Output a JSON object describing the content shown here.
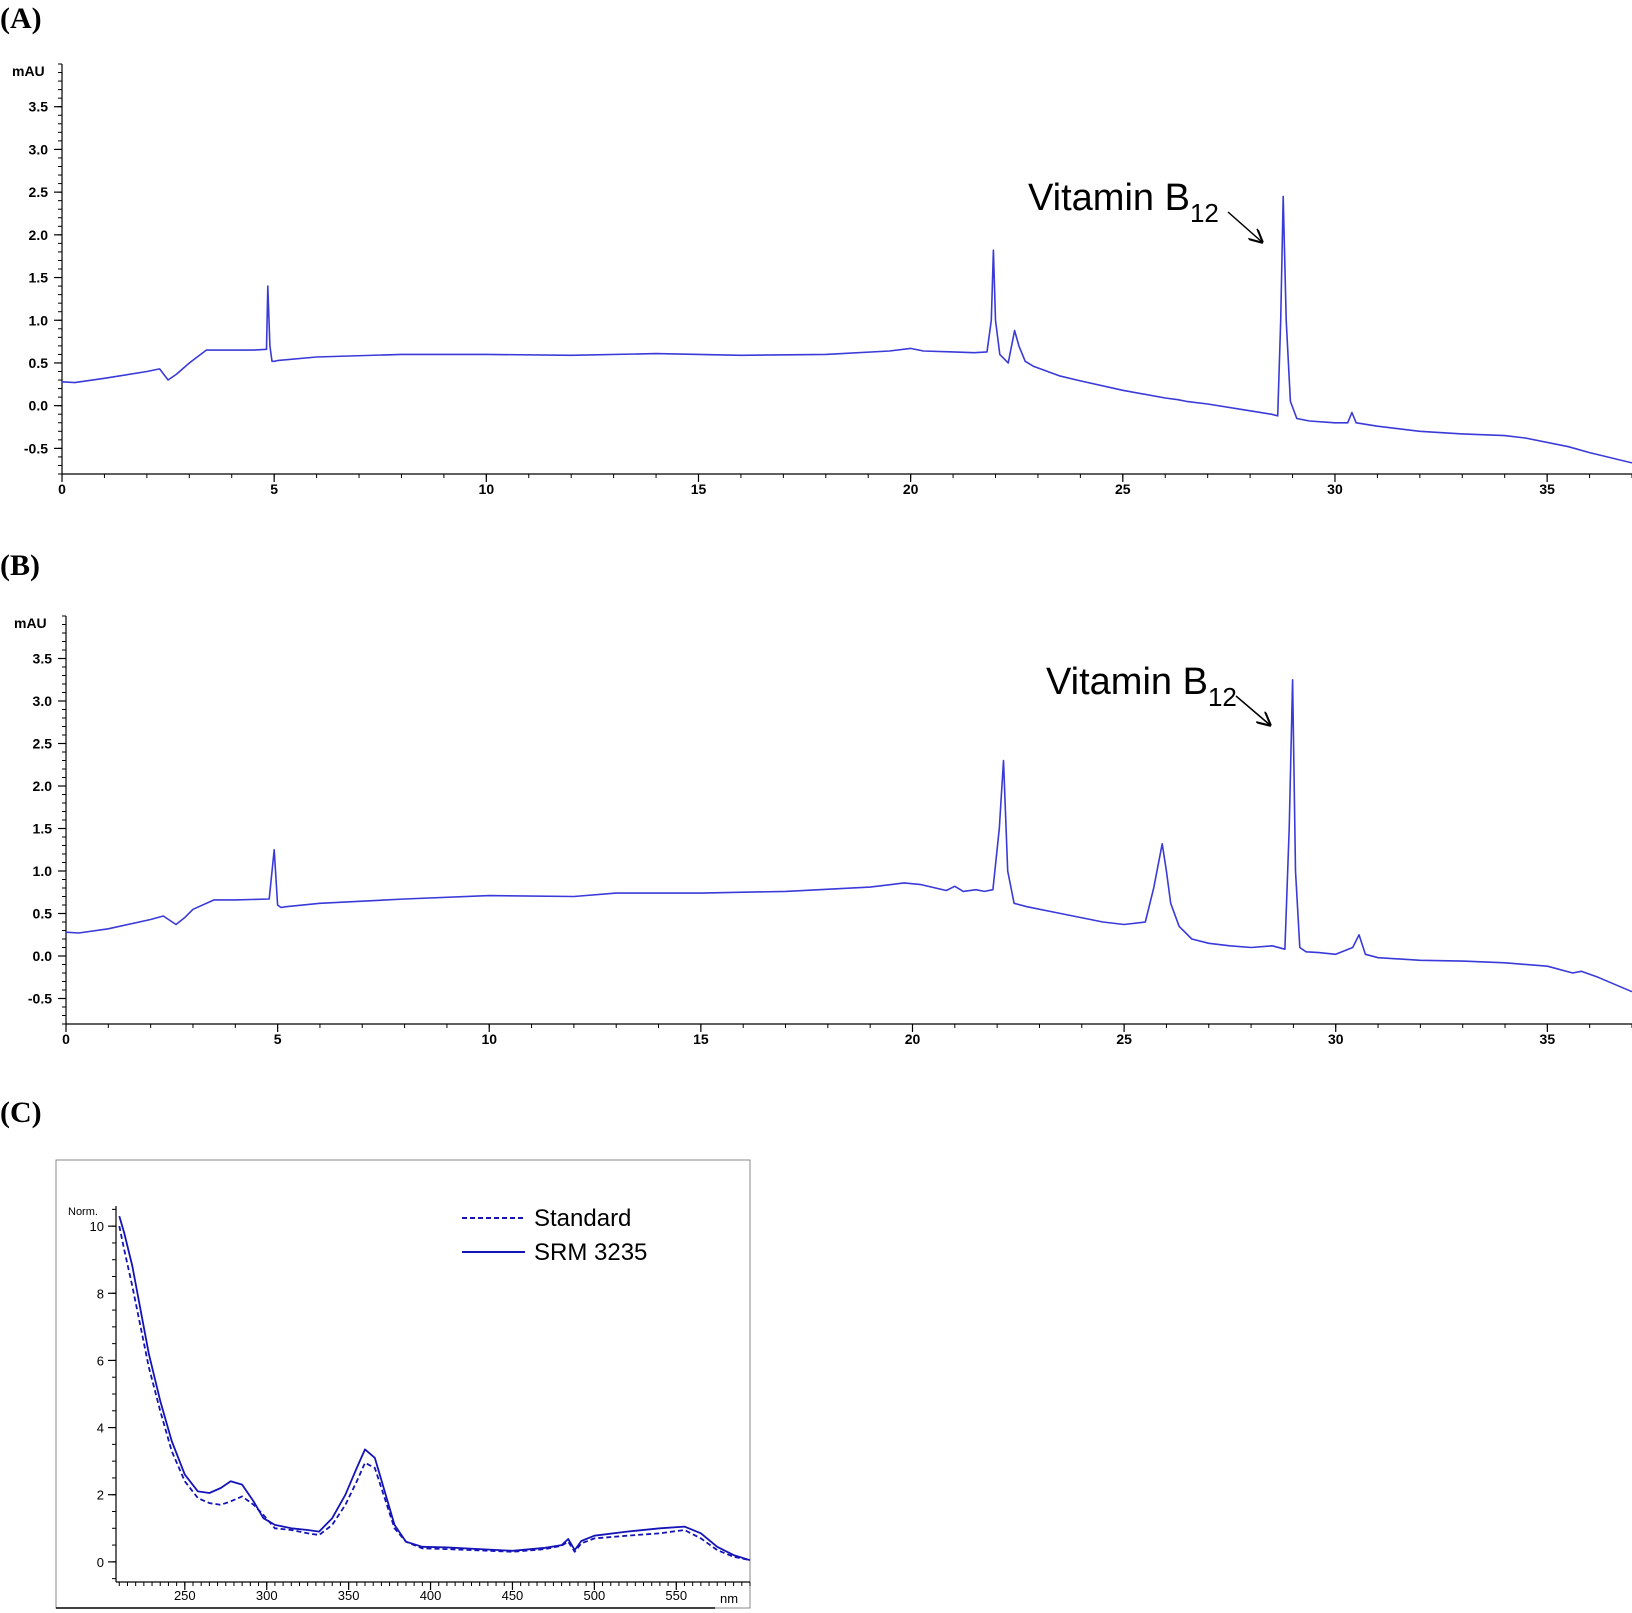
{
  "chart_data": [
    {
      "panel": "(A)",
      "type": "line",
      "ylabel": "mAU",
      "xlabel": "",
      "xlim": [
        0,
        37
      ],
      "ylim": [
        -0.8,
        4.0
      ],
      "xticks": [
        0,
        5,
        10,
        15,
        20,
        25,
        30,
        35
      ],
      "yticks": [
        -0.5,
        0.0,
        0.5,
        1.0,
        1.5,
        2.0,
        2.5,
        3.0,
        3.5
      ],
      "ytick_labels": [
        "-0.5",
        "0.0",
        "0.5",
        "1.0",
        "1.5",
        "2.0",
        "2.5",
        "3.0",
        "3.5"
      ],
      "annotation": {
        "text": "Vitamin B",
        "subscript": "12",
        "points_to": [
          28.7,
          2.4
        ]
      },
      "color": "#3a3ad8",
      "series": [
        {
          "x": [
            0.0,
            0.3,
            1.0,
            2.0,
            2.3,
            2.5,
            2.7,
            3.0,
            3.4,
            3.6,
            4.0,
            4.5,
            4.82,
            4.85,
            4.9,
            4.95,
            5.0,
            5.1,
            6.0,
            8.0,
            10.0,
            12.0,
            14.0,
            16.0,
            18.0,
            19.5,
            20.0,
            20.3,
            21.0,
            21.5,
            21.8,
            21.9,
            21.95,
            22.0,
            22.1,
            22.2,
            22.3,
            22.45,
            22.55,
            22.7,
            22.9,
            23.5,
            24.0,
            25.0,
            26.0,
            26.3,
            26.5,
            27.0,
            28.0,
            28.5,
            28.65,
            28.72,
            28.78,
            28.85,
            28.95,
            29.1,
            29.4,
            30.0,
            30.3,
            30.4,
            30.5,
            31.0,
            32.0,
            33.0,
            34.0,
            34.5,
            35.5,
            36.0,
            37.0
          ],
          "y": [
            0.28,
            0.27,
            0.32,
            0.4,
            0.43,
            0.3,
            0.37,
            0.5,
            0.65,
            0.65,
            0.65,
            0.65,
            0.66,
            1.4,
            0.7,
            0.52,
            0.52,
            0.53,
            0.57,
            0.6,
            0.6,
            0.59,
            0.61,
            0.59,
            0.6,
            0.64,
            0.67,
            0.64,
            0.63,
            0.62,
            0.63,
            1.0,
            1.82,
            1.0,
            0.6,
            0.55,
            0.5,
            0.88,
            0.7,
            0.52,
            0.46,
            0.35,
            0.29,
            0.18,
            0.09,
            0.07,
            0.05,
            0.02,
            -0.06,
            -0.1,
            -0.12,
            1.0,
            2.45,
            1.0,
            0.05,
            -0.15,
            -0.18,
            -0.2,
            -0.2,
            -0.08,
            -0.2,
            -0.24,
            -0.3,
            -0.33,
            -0.35,
            -0.38,
            -0.48,
            -0.55,
            -0.67
          ]
        }
      ]
    },
    {
      "panel": "(B)",
      "type": "line",
      "ylabel": "mAU",
      "xlabel": "",
      "xlim": [
        0,
        37
      ],
      "ylim": [
        -0.8,
        4.0
      ],
      "xticks": [
        0,
        5,
        10,
        15,
        20,
        25,
        30,
        35
      ],
      "yticks": [
        -0.5,
        0.0,
        0.5,
        1.0,
        1.5,
        2.0,
        2.5,
        3.0,
        3.5
      ],
      "ytick_labels": [
        "-0.5",
        "0.0",
        "0.5",
        "1.0",
        "1.5",
        "2.0",
        "2.5",
        "3.0",
        "3.5"
      ],
      "annotation": {
        "text": "Vitamin B",
        "subscript": "12",
        "points_to": [
          28.7,
          2.7
        ]
      },
      "color": "#3a3ad8",
      "series": [
        {
          "x": [
            0.0,
            0.3,
            1.0,
            2.0,
            2.3,
            2.6,
            2.8,
            3.0,
            3.5,
            4.0,
            4.8,
            4.92,
            5.0,
            5.08,
            5.2,
            6.0,
            8.0,
            10.0,
            12.0,
            13.0,
            15.0,
            17.0,
            19.0,
            19.8,
            20.2,
            20.8,
            21.0,
            21.2,
            21.5,
            21.7,
            21.9,
            22.05,
            22.15,
            22.25,
            22.4,
            22.7,
            23.5,
            24.5,
            25.0,
            25.5,
            25.7,
            25.9,
            26.0,
            26.1,
            26.3,
            26.6,
            27.0,
            27.5,
            28.0,
            28.5,
            28.8,
            28.9,
            28.98,
            29.05,
            29.15,
            29.3,
            29.6,
            30.0,
            30.4,
            30.55,
            30.7,
            31.0,
            32.0,
            33.0,
            34.0,
            35.0,
            35.6,
            35.8,
            36.2,
            37.0
          ],
          "y": [
            0.28,
            0.27,
            0.32,
            0.43,
            0.47,
            0.37,
            0.45,
            0.55,
            0.66,
            0.66,
            0.67,
            1.25,
            0.6,
            0.57,
            0.58,
            0.62,
            0.67,
            0.71,
            0.7,
            0.74,
            0.74,
            0.76,
            0.81,
            0.86,
            0.84,
            0.77,
            0.82,
            0.76,
            0.78,
            0.76,
            0.78,
            1.5,
            2.3,
            1.0,
            0.62,
            0.58,
            0.5,
            0.4,
            0.37,
            0.4,
            0.8,
            1.32,
            1.0,
            0.62,
            0.35,
            0.2,
            0.15,
            0.12,
            0.1,
            0.12,
            0.08,
            1.5,
            3.25,
            1.0,
            0.1,
            0.05,
            0.04,
            0.02,
            0.1,
            0.25,
            0.02,
            -0.02,
            -0.05,
            -0.06,
            -0.08,
            -0.12,
            -0.2,
            -0.18,
            -0.25,
            -0.42
          ]
        }
      ]
    },
    {
      "panel": "(C)",
      "type": "line",
      "ylabel": "Norm.",
      "xlabel": "nm",
      "xlim": [
        208,
        595
      ],
      "ylim": [
        -0.6,
        10.6
      ],
      "xticks": [
        250,
        300,
        350,
        400,
        450,
        500,
        550
      ],
      "yticks": [
        0,
        2,
        4,
        6,
        8,
        10
      ],
      "legend_position": "top-right",
      "color": "#1414b8",
      "series": [
        {
          "name": "Standard",
          "style": "dashed",
          "x": [
            210,
            213,
            218,
            223,
            228,
            235,
            242,
            250,
            258,
            265,
            272,
            278,
            285,
            292,
            298,
            305,
            315,
            325,
            332,
            340,
            348,
            355,
            360,
            366,
            372,
            378,
            385,
            395,
            410,
            430,
            450,
            470,
            480,
            484,
            488,
            492,
            500,
            520,
            540,
            555,
            565,
            575,
            585,
            595
          ],
          "y": [
            10.0,
            9.3,
            8.2,
            7.0,
            5.8,
            4.5,
            3.3,
            2.4,
            1.9,
            1.75,
            1.7,
            1.8,
            1.95,
            1.7,
            1.4,
            1.0,
            0.95,
            0.85,
            0.8,
            1.1,
            1.7,
            2.4,
            2.95,
            2.8,
            1.9,
            1.0,
            0.6,
            0.4,
            0.38,
            0.34,
            0.3,
            0.38,
            0.48,
            0.6,
            0.3,
            0.55,
            0.7,
            0.78,
            0.85,
            0.95,
            0.7,
            0.35,
            0.15,
            0.05
          ]
        },
        {
          "name": "SRM 3235",
          "style": "solid",
          "x": [
            210,
            213,
            218,
            223,
            228,
            235,
            242,
            250,
            258,
            265,
            272,
            278,
            285,
            292,
            298,
            305,
            315,
            325,
            332,
            340,
            348,
            355,
            360,
            366,
            372,
            378,
            385,
            395,
            410,
            430,
            450,
            470,
            480,
            484,
            488,
            492,
            500,
            520,
            540,
            555,
            565,
            575,
            585,
            595
          ],
          "y": [
            10.3,
            9.8,
            8.8,
            7.5,
            6.2,
            4.8,
            3.6,
            2.6,
            2.1,
            2.05,
            2.2,
            2.4,
            2.3,
            1.8,
            1.3,
            1.1,
            1.0,
            0.95,
            0.9,
            1.3,
            2.0,
            2.8,
            3.35,
            3.1,
            2.1,
            1.1,
            0.6,
            0.45,
            0.43,
            0.38,
            0.33,
            0.42,
            0.5,
            0.68,
            0.35,
            0.62,
            0.78,
            0.9,
            1.0,
            1.05,
            0.85,
            0.45,
            0.2,
            0.05
          ]
        }
      ]
    }
  ]
}
